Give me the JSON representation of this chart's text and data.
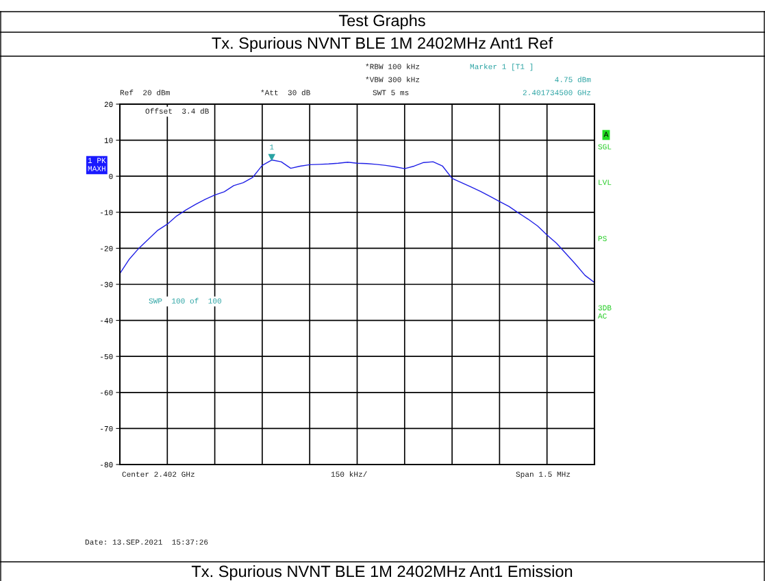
{
  "chart_data": {
    "type": "line",
    "title": "Tx. Spurious NVNT BLE 1M 2402MHz Ant1 Ref",
    "categories": [
      null,
      null,
      null,
      null,
      null,
      null,
      null,
      null,
      null,
      null,
      null,
      null,
      null,
      null,
      null,
      null,
      null,
      null,
      null,
      null,
      null,
      null,
      null,
      null,
      null,
      null,
      null,
      null,
      null,
      null,
      null,
      null,
      null,
      null,
      null,
      null,
      null,
      null,
      null,
      null,
      null,
      null,
      null,
      null,
      null,
      null,
      null,
      null,
      null,
      null,
      null
    ],
    "series": [
      {
        "color": "#1f1fe6",
        "values": [
          -27,
          -23,
          -20,
          -17.5,
          -15,
          -13.3,
          -11,
          -9.3,
          -7.8,
          -6.4,
          -5.2,
          -4.3,
          -2.6,
          -1.8,
          -0.3,
          3.0,
          4.5,
          4.0,
          2.2,
          2.8,
          3.2,
          3.3,
          3.4,
          3.6,
          3.9,
          3.6,
          3.5,
          3.3,
          3.0,
          2.6,
          2.1,
          2.8,
          3.8,
          4.0,
          2.8,
          -0.6,
          -1.8,
          -3.0,
          -4.2,
          -5.6,
          -7.0,
          -8.4,
          -10.2,
          -11.9,
          -13.8,
          -16.3,
          -18.6,
          -21.5,
          -24.4,
          -27.5,
          -29.5
        ]
      }
    ],
    "ylim": [
      -80,
      20
    ],
    "yticks": [
      -80,
      -70,
      -60,
      -50,
      -40,
      -30,
      -20,
      -10,
      0,
      10,
      20
    ],
    "grid": true,
    "marker": "none",
    "line_style": "solid",
    "annotations": [
      "Test Graphs",
      "Ref  20 dBm",
      "Offset  3.4 dB",
      "*Att  30 dB",
      "*RBW 100 kHz",
      "*VBW 300 kHz",
      "SWT 5 ms",
      "Marker 1 [T1 ]",
      "4.75 dBm",
      "2.401734500 GHz",
      "1 PK\nMAXH",
      "A",
      "SGL",
      "LVL",
      "PS",
      "3DB\nAC",
      "SWP  100 of  100",
      "Center 2.402 GHz",
      "150 kHz/",
      "Span 1.5 MHz",
      "Date: 13.SEP.2021  15:37:26",
      "Tx. Spurious NVNT BLE 1M 2402MHz Ant1 Emission",
      {
        "text": "1",
        "y": 4.75
      }
    ]
  }
}
